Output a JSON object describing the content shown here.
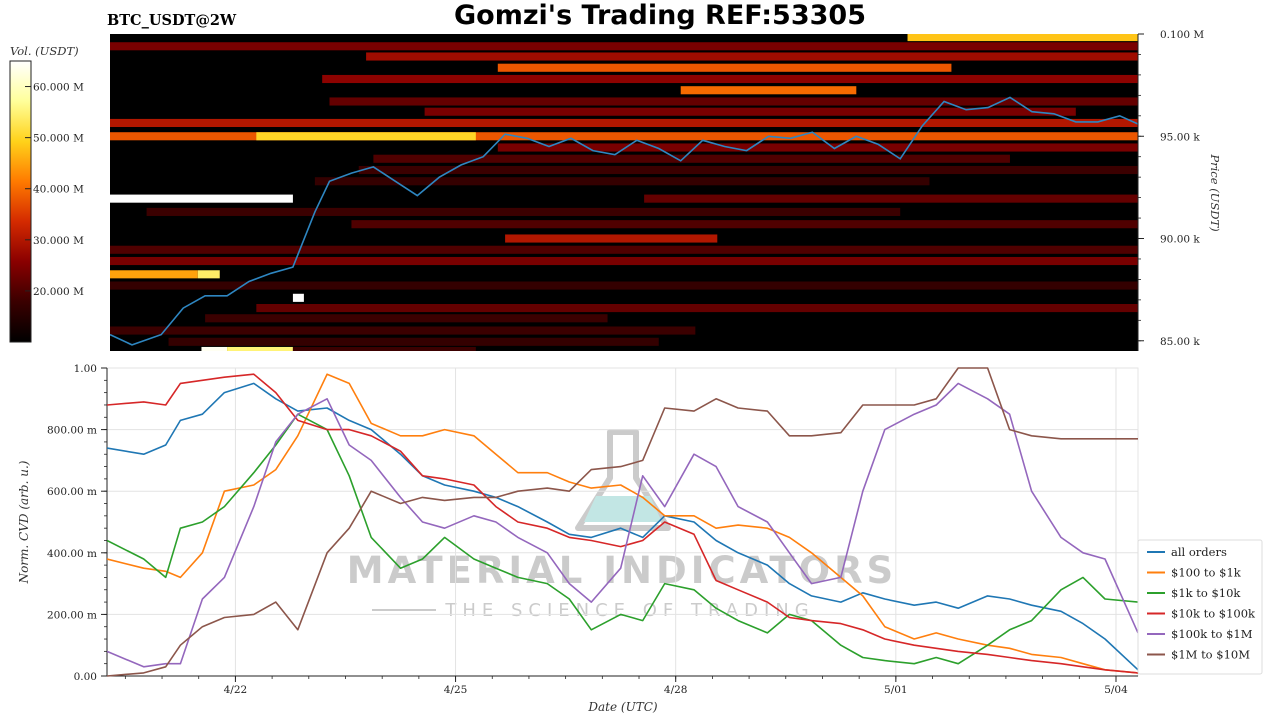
{
  "header": {
    "title": "Gomzi's Trading REF:53305",
    "pair": "BTC_USDT@2W"
  },
  "watermark": {
    "line1": "MATERIAL INDICATORS",
    "line2": "THE SCIENCE OF TRADING"
  },
  "chart_data": [
    {
      "type": "heatmap",
      "colorbar_label": "Vol. (USDT)",
      "colorbar_ticks": [
        "20.000 M",
        "30.000 M",
        "40.000 M",
        "50.000 M",
        "60.000 M"
      ],
      "colorbar_values": [
        20,
        30,
        40,
        50,
        60
      ],
      "colorbar_range": [
        10,
        65
      ],
      "colormap": [
        "#000000",
        "#3a0000",
        "#8a0000",
        "#d42a00",
        "#ff7a00",
        "#ffd21a",
        "#ffff9a",
        "#ffffff"
      ],
      "ylabel": "Price (USDT)",
      "y_ticks": [
        "85.00 k",
        "90.00 k",
        "95.00 k",
        "0.100 M"
      ],
      "y_tick_values": [
        85000,
        90000,
        95000,
        100000
      ],
      "ylim": [
        84500,
        100000
      ],
      "xlim_days": [
        0,
        14.05
      ],
      "price_line_color": "#2e86c1",
      "price_series": {
        "x_days": [
          0,
          0.3,
          0.7,
          1.0,
          1.3,
          1.6,
          1.9,
          2.2,
          2.5,
          2.8,
          3.0,
          3.3,
          3.6,
          3.9,
          4.2,
          4.5,
          4.8,
          5.1,
          5.4,
          5.7,
          6.0,
          6.3,
          6.6,
          6.9,
          7.2,
          7.5,
          7.8,
          8.1,
          8.4,
          8.7,
          9.0,
          9.3,
          9.6,
          9.9,
          10.2,
          10.5,
          10.8,
          11.1,
          11.4,
          11.7,
          12.0,
          12.3,
          12.6,
          12.9,
          13.2,
          13.5,
          13.8,
          14.05
        ],
        "price": [
          85300,
          84800,
          85300,
          86600,
          87200,
          87200,
          87900,
          88300,
          88600,
          91300,
          92800,
          93200,
          93500,
          92800,
          92100,
          93000,
          93600,
          94000,
          95100,
          94900,
          94500,
          94900,
          94300,
          94100,
          94800,
          94400,
          93800,
          94800,
          94500,
          94300,
          95000,
          94900,
          95200,
          94400,
          95000,
          94600,
          93900,
          95500,
          96700,
          96300,
          96400,
          96900,
          96200,
          96100,
          95700,
          95700,
          96000,
          95600
        ]
      },
      "bands": [
        {
          "price": 99850,
          "from": 10.9,
          "to": 14.05,
          "level": 48
        },
        {
          "price": 99400,
          "from": 0,
          "to": 14.05,
          "level": 24
        },
        {
          "price": 98900,
          "from": 3.5,
          "to": 14.05,
          "level": 28
        },
        {
          "price": 98350,
          "from": 5.3,
          "to": 11.5,
          "level": 38
        },
        {
          "price": 97800,
          "from": 2.9,
          "to": 14.05,
          "level": 26
        },
        {
          "price": 97250,
          "from": 7.8,
          "to": 10.2,
          "level": 40
        },
        {
          "price": 96700,
          "from": 3.0,
          "to": 14.05,
          "level": 22
        },
        {
          "price": 96200,
          "from": 4.3,
          "to": 13.2,
          "level": 24
        },
        {
          "price": 95650,
          "from": 0,
          "to": 14.05,
          "level": 30
        },
        {
          "price": 95000,
          "from": 0,
          "to": 14.05,
          "level": 38
        },
        {
          "price": 95000,
          "from": 2.0,
          "to": 5.0,
          "level": 50
        },
        {
          "price": 94450,
          "from": 5.3,
          "to": 14.05,
          "level": 24
        },
        {
          "price": 93900,
          "from": 3.6,
          "to": 12.3,
          "level": 20
        },
        {
          "price": 93350,
          "from": 3.4,
          "to": 14.05,
          "level": 18
        },
        {
          "price": 92800,
          "from": 2.8,
          "to": 11.2,
          "level": 17
        },
        {
          "price": 91950,
          "from": 0,
          "to": 2.5,
          "level": 65
        },
        {
          "price": 91950,
          "from": 7.3,
          "to": 14.05,
          "level": 22
        },
        {
          "price": 91300,
          "from": 0.5,
          "to": 10.8,
          "level": 18
        },
        {
          "price": 90700,
          "from": 3.3,
          "to": 14.05,
          "level": 20
        },
        {
          "price": 90000,
          "from": 5.4,
          "to": 8.3,
          "level": 30
        },
        {
          "price": 89450,
          "from": 0,
          "to": 14.05,
          "level": 20
        },
        {
          "price": 88900,
          "from": 0,
          "to": 14.05,
          "level": 24
        },
        {
          "price": 88250,
          "from": 0,
          "to": 1.2,
          "level": 45
        },
        {
          "price": 88250,
          "from": 1.2,
          "to": 1.5,
          "level": 54
        },
        {
          "price": 87700,
          "from": 0,
          "to": 14.05,
          "level": 17
        },
        {
          "price": 87100,
          "from": 2.5,
          "to": 2.65,
          "level": 65
        },
        {
          "price": 86600,
          "from": 2.0,
          "to": 14.05,
          "level": 22
        },
        {
          "price": 86100,
          "from": 1.3,
          "to": 6.8,
          "level": 18
        },
        {
          "price": 85500,
          "from": 0,
          "to": 8.0,
          "level": 18
        },
        {
          "price": 84950,
          "from": 0.8,
          "to": 7.5,
          "level": 17
        },
        {
          "price": 84500,
          "from": 1.25,
          "to": 1.6,
          "level": 64
        },
        {
          "price": 84500,
          "from": 1.6,
          "to": 2.5,
          "level": 55
        },
        {
          "price": 84500,
          "from": 2.5,
          "to": 5.0,
          "level": 18
        },
        {
          "price": 83950,
          "from": 0,
          "to": 4.5,
          "level": 20
        },
        {
          "price": 83400,
          "from": 0,
          "to": 3.0,
          "level": 17
        }
      ]
    },
    {
      "type": "line",
      "xlabel": "Date (UTC)",
      "ylabel": "Norm. CVD (arb. u.)",
      "x_tick_labels": [
        "4/22",
        "4/25",
        "4/28",
        "5/01",
        "5/04"
      ],
      "x_tick_values": [
        1.75,
        4.75,
        7.75,
        10.75,
        13.75
      ],
      "y_tick_labels": [
        "0.00",
        "200.00 m",
        "400.00 m",
        "600.00 m",
        "800.00 m",
        "1.00"
      ],
      "y_tick_values": [
        0,
        0.2,
        0.4,
        0.6,
        0.8,
        1.0
      ],
      "ylim": [
        0,
        1
      ],
      "xlim_days": [
        0,
        14.05
      ],
      "grid": true,
      "legend_position": "right",
      "x": [
        0,
        0.5,
        0.8,
        1.0,
        1.3,
        1.6,
        2.0,
        2.3,
        2.6,
        3.0,
        3.3,
        3.6,
        4.0,
        4.3,
        4.6,
        5.0,
        5.3,
        5.6,
        6.0,
        6.3,
        6.6,
        7.0,
        7.3,
        7.6,
        8.0,
        8.3,
        8.6,
        9.0,
        9.3,
        9.6,
        10.0,
        10.3,
        10.6,
        11.0,
        11.3,
        11.6,
        12.0,
        12.3,
        12.6,
        13.0,
        13.3,
        13.6,
        14.05
      ],
      "series": [
        {
          "name": "all orders",
          "color": "#1f77b4",
          "values": [
            0.74,
            0.72,
            0.75,
            0.83,
            0.85,
            0.92,
            0.95,
            0.9,
            0.86,
            0.87,
            0.83,
            0.8,
            0.72,
            0.65,
            0.62,
            0.6,
            0.58,
            0.55,
            0.5,
            0.46,
            0.45,
            0.48,
            0.45,
            0.52,
            0.5,
            0.44,
            0.4,
            0.36,
            0.3,
            0.26,
            0.24,
            0.27,
            0.25,
            0.23,
            0.24,
            0.22,
            0.26,
            0.25,
            0.23,
            0.21,
            0.17,
            0.12,
            0.02
          ]
        },
        {
          "name": "$100 to $1k",
          "color": "#ff7f0e",
          "values": [
            0.38,
            0.35,
            0.34,
            0.32,
            0.4,
            0.6,
            0.62,
            0.67,
            0.78,
            0.98,
            0.95,
            0.82,
            0.78,
            0.78,
            0.8,
            0.78,
            0.72,
            0.66,
            0.66,
            0.63,
            0.61,
            0.62,
            0.58,
            0.52,
            0.52,
            0.48,
            0.49,
            0.48,
            0.45,
            0.4,
            0.32,
            0.26,
            0.16,
            0.12,
            0.14,
            0.12,
            0.1,
            0.09,
            0.07,
            0.06,
            0.04,
            0.02,
            0.01
          ]
        },
        {
          "name": "$1k to $10k",
          "color": "#2ca02c",
          "values": [
            0.44,
            0.38,
            0.32,
            0.48,
            0.5,
            0.55,
            0.66,
            0.75,
            0.85,
            0.8,
            0.65,
            0.45,
            0.35,
            0.38,
            0.45,
            0.38,
            0.35,
            0.32,
            0.3,
            0.25,
            0.15,
            0.2,
            0.18,
            0.3,
            0.28,
            0.22,
            0.18,
            0.14,
            0.2,
            0.18,
            0.1,
            0.06,
            0.05,
            0.04,
            0.06,
            0.04,
            0.1,
            0.15,
            0.18,
            0.28,
            0.32,
            0.25,
            0.24
          ]
        },
        {
          "name": "$10k to $100k",
          "color": "#d62728",
          "values": [
            0.88,
            0.89,
            0.88,
            0.95,
            0.96,
            0.97,
            0.98,
            0.92,
            0.83,
            0.8,
            0.8,
            0.78,
            0.73,
            0.65,
            0.64,
            0.62,
            0.55,
            0.5,
            0.48,
            0.45,
            0.44,
            0.42,
            0.44,
            0.5,
            0.46,
            0.31,
            0.28,
            0.24,
            0.19,
            0.18,
            0.17,
            0.15,
            0.12,
            0.1,
            0.09,
            0.08,
            0.07,
            0.06,
            0.05,
            0.04,
            0.03,
            0.02,
            0.01
          ]
        },
        {
          "name": "$100k to $1M",
          "color": "#9467bd",
          "values": [
            0.08,
            0.03,
            0.04,
            0.04,
            0.25,
            0.32,
            0.55,
            0.76,
            0.85,
            0.9,
            0.75,
            0.7,
            0.58,
            0.5,
            0.48,
            0.52,
            0.5,
            0.45,
            0.4,
            0.3,
            0.24,
            0.35,
            0.65,
            0.55,
            0.72,
            0.68,
            0.55,
            0.5,
            0.4,
            0.3,
            0.32,
            0.6,
            0.8,
            0.85,
            0.88,
            0.95,
            0.9,
            0.85,
            0.6,
            0.45,
            0.4,
            0.38,
            0.14
          ]
        },
        {
          "name": "$1M to $10M",
          "color": "#8c564b",
          "values": [
            0.0,
            0.01,
            0.03,
            0.1,
            0.16,
            0.19,
            0.2,
            0.24,
            0.15,
            0.4,
            0.48,
            0.6,
            0.56,
            0.58,
            0.57,
            0.58,
            0.58,
            0.6,
            0.61,
            0.6,
            0.67,
            0.68,
            0.7,
            0.87,
            0.86,
            0.9,
            0.87,
            0.86,
            0.78,
            0.78,
            0.79,
            0.88,
            0.88,
            0.88,
            0.9,
            1.0,
            1.0,
            0.8,
            0.78,
            0.77,
            0.77,
            0.77,
            0.77
          ]
        }
      ]
    }
  ]
}
